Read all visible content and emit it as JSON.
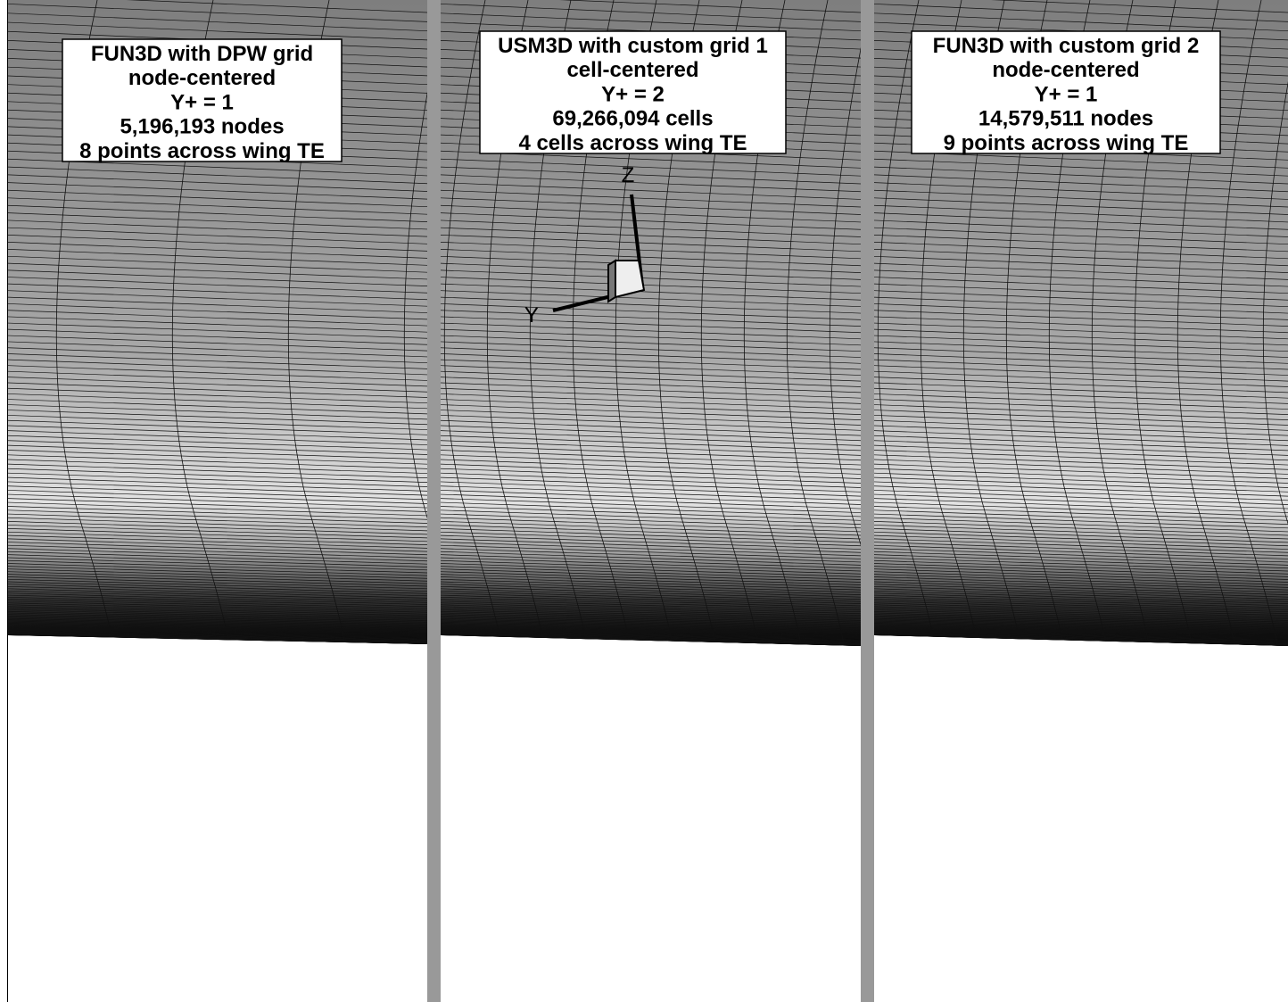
{
  "panels": [
    {
      "lines": [
        "FUN3D with DPW grid",
        "node-centered",
        "Y+ = 1",
        "5,196,193 nodes",
        "8 points across wing TE"
      ]
    },
    {
      "lines": [
        "USM3D with custom grid 1",
        "cell-centered",
        "Y+ = 2",
        "69,266,094 cells",
        "4 cells across wing TE"
      ]
    },
    {
      "lines": [
        "FUN3D with custom grid 2",
        "node-centered",
        "Y+ = 1",
        "14,579,511 nodes",
        "9 points across wing TE"
      ]
    }
  ],
  "axes": {
    "z": "Z",
    "y": "Y"
  }
}
